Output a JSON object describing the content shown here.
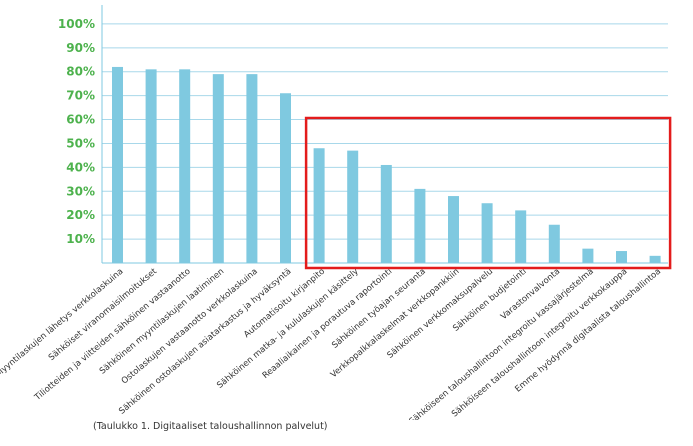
{
  "chart_data": {
    "type": "bar",
    "categories": [
      "Myyntilaskujen lähetys verkkolaskuina",
      "Sähköiset viranomaisilmoitukset",
      "Tiliotteiden ja viitteiden sähköinen vastaanotto",
      "Sähköinen myyntilaskujen laatiminen",
      "Ostolaskujen vastaanotto verkkolaskuina",
      "Sähköinen ostolaskujen asiatarkastus ja hyväksyntä",
      "Automatisoitu kirjanpito",
      "Sähköinen matka- ja kululaskujen käsittely",
      "Reaaliaikainen ja porautuva raportointi",
      "Sähköinen työajan seuranta",
      "Verkkopalkkalaskelmat verkkopankkiin",
      "Sähköinen verkkomaksupalvelu",
      "Sähköinen budjetointi",
      "Varastonvalvonta",
      "Sähköiseen taloushallintoon integroitu kassajärjestelmä",
      "Sähköiseen taloushallintoon integroitu verkkokauppa",
      "Emme hyödynnä digitaalista taloushallintoa"
    ],
    "values": [
      82,
      81,
      81,
      79,
      79,
      71,
      48,
      47,
      41,
      31,
      28,
      25,
      22,
      16,
      6,
      5,
      3
    ],
    "ylim": [
      0,
      110
    ],
    "yticks": [
      "10%",
      "20%",
      "30%",
      "40%",
      "50%",
      "60%",
      "70%",
      "80%",
      "90%",
      "100%"
    ],
    "ytick_values": [
      10,
      20,
      30,
      40,
      50,
      60,
      70,
      80,
      90,
      100
    ],
    "grid": true,
    "bar_color": "#7fc9e0",
    "tick_label_color": "#4db24d",
    "highlight_color": "#e31c1c",
    "highlight_range": [
      6,
      16
    ]
  },
  "caption": "(Taulukko 1. Digitaaliset taloushallinnon palvelut)"
}
